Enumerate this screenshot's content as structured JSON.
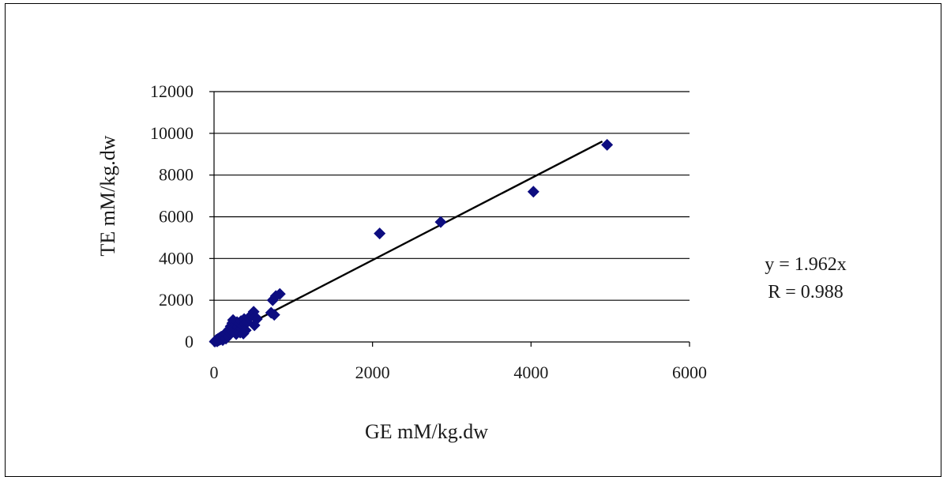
{
  "chart_data": {
    "type": "scatter",
    "title": "",
    "xlabel": "GE mM/kg.dw",
    "ylabel": "TE mM/kg.dw",
    "xlim": [
      0,
      6000
    ],
    "ylim": [
      0,
      12000
    ],
    "x_ticks": [
      "0",
      "2000",
      "4000",
      "6000"
    ],
    "y_ticks": [
      "0",
      "2000",
      "4000",
      "6000",
      "8000",
      "10000",
      "12000"
    ],
    "grid": "horizontal",
    "marker": "diamond",
    "marker_color": "#0d0d80",
    "line_color": "#000000",
    "series": [
      {
        "points": [
          {
            "x": 10,
            "y": 20
          },
          {
            "x": 20,
            "y": 60
          },
          {
            "x": 30,
            "y": 100
          },
          {
            "x": 40,
            "y": 30
          },
          {
            "x": 50,
            "y": 150
          },
          {
            "x": 60,
            "y": 80
          },
          {
            "x": 70,
            "y": 200
          },
          {
            "x": 80,
            "y": 120
          },
          {
            "x": 90,
            "y": 250
          },
          {
            "x": 100,
            "y": 180
          },
          {
            "x": 110,
            "y": 90
          },
          {
            "x": 120,
            "y": 300
          },
          {
            "x": 130,
            "y": 220
          },
          {
            "x": 140,
            "y": 400
          },
          {
            "x": 150,
            "y": 160
          },
          {
            "x": 160,
            "y": 350
          },
          {
            "x": 170,
            "y": 500
          },
          {
            "x": 180,
            "y": 280
          },
          {
            "x": 190,
            "y": 600
          },
          {
            "x": 200,
            "y": 420
          },
          {
            "x": 210,
            "y": 750
          },
          {
            "x": 220,
            "y": 550
          },
          {
            "x": 230,
            "y": 900
          },
          {
            "x": 240,
            "y": 1050
          },
          {
            "x": 250,
            "y": 650
          },
          {
            "x": 260,
            "y": 480
          },
          {
            "x": 270,
            "y": 800
          },
          {
            "x": 280,
            "y": 380
          },
          {
            "x": 290,
            "y": 950
          },
          {
            "x": 300,
            "y": 700
          },
          {
            "x": 310,
            "y": 520
          },
          {
            "x": 320,
            "y": 880
          },
          {
            "x": 330,
            "y": 450
          },
          {
            "x": 340,
            "y": 1000
          },
          {
            "x": 350,
            "y": 620
          },
          {
            "x": 360,
            "y": 780
          },
          {
            "x": 370,
            "y": 400
          },
          {
            "x": 380,
            "y": 1100
          },
          {
            "x": 390,
            "y": 850
          },
          {
            "x": 400,
            "y": 560
          },
          {
            "x": 420,
            "y": 950
          },
          {
            "x": 440,
            "y": 1150
          },
          {
            "x": 460,
            "y": 1250
          },
          {
            "x": 480,
            "y": 1300
          },
          {
            "x": 500,
            "y": 1450
          },
          {
            "x": 510,
            "y": 800
          },
          {
            "x": 520,
            "y": 1200
          },
          {
            "x": 540,
            "y": 1100
          },
          {
            "x": 720,
            "y": 1400
          },
          {
            "x": 740,
            "y": 2000
          },
          {
            "x": 760,
            "y": 1300
          },
          {
            "x": 780,
            "y": 2200
          },
          {
            "x": 830,
            "y": 2300
          },
          {
            "x": 2090,
            "y": 5200
          },
          {
            "x": 2860,
            "y": 5750
          },
          {
            "x": 4030,
            "y": 7200
          },
          {
            "x": 4960,
            "y": 9450
          }
        ]
      }
    ],
    "trendline": {
      "slope": 1.962,
      "x_start": 0,
      "x_end": 4900
    },
    "annotations": [
      "y = 1.962x",
      "R = 0.988"
    ]
  }
}
